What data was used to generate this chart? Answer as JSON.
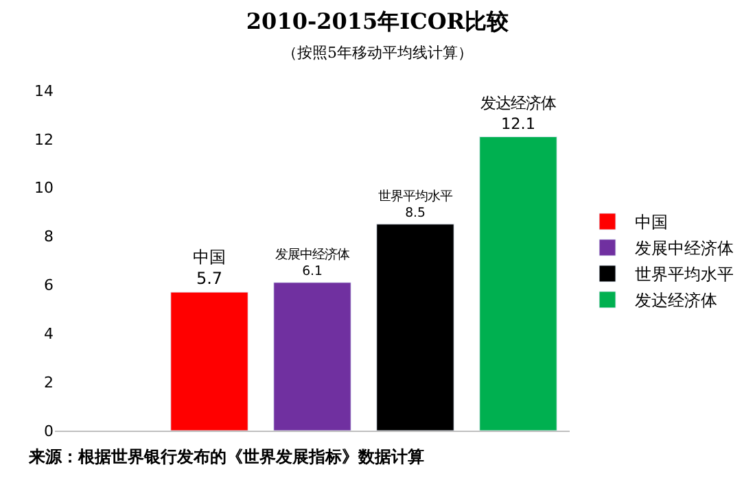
{
  "chart_data": {
    "type": "bar",
    "title": "2010-2015年ICOR比较",
    "subtitle": "（按照5年移动平均线计算）",
    "categories": [
      null,
      null,
      null,
      null,
      null
    ],
    "series": [
      {
        "name": "中国",
        "color": "#ff0000",
        "values": [
          null,
          5.7,
          null,
          null,
          null
        ]
      },
      {
        "name": "发展中经济体",
        "color": "#7030a0",
        "values": [
          null,
          null,
          6.1,
          null,
          null
        ]
      },
      {
        "name": "世界平均水平",
        "color": "#000000",
        "values": [
          null,
          null,
          null,
          8.5,
          null
        ]
      },
      {
        "name": "发达经济体",
        "color": "#00b050",
        "values": [
          null,
          null,
          null,
          null,
          12.1
        ]
      }
    ],
    "ylim": [
      0,
      14
    ],
    "yticks": [
      0,
      2,
      4,
      6,
      8,
      10,
      12,
      14
    ],
    "grid": false,
    "legend": "right",
    "data_labels": true,
    "annotations": [
      "来源：根据世界银行发布的《世界发展指标》数据计算"
    ]
  }
}
